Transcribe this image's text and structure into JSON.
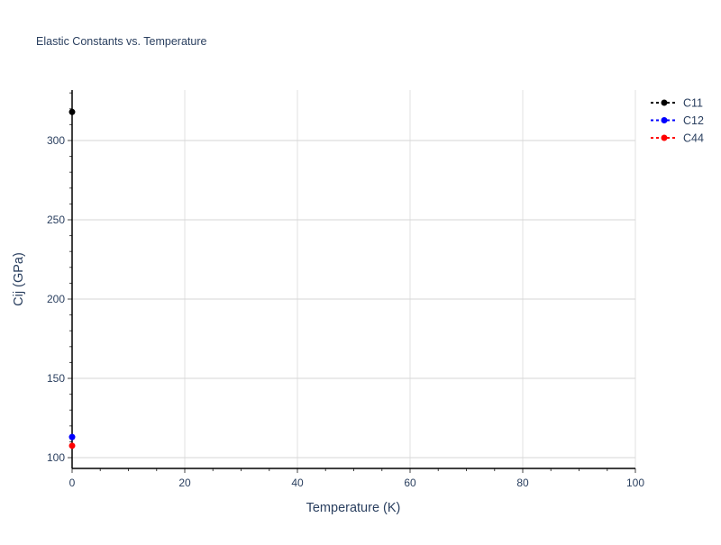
{
  "chart_data": {
    "type": "scatter",
    "mode": "lines+markers",
    "title": "Elastic Constants vs. Temperature",
    "xlabel": "Temperature (K)",
    "ylabel": "Cij (GPa)",
    "xlim": [
      0,
      100
    ],
    "ylim": [
      93.2,
      331.8
    ],
    "xticks": [
      0,
      20,
      40,
      60,
      80,
      100
    ],
    "yticks": [
      100,
      150,
      200,
      250,
      300
    ],
    "grid": true,
    "legend": "top-right",
    "series": [
      {
        "name": "C11",
        "color": "#000000",
        "x": [
          0
        ],
        "y": [
          318
        ]
      },
      {
        "name": "C12",
        "color": "#0000ff",
        "x": [
          0
        ],
        "y": [
          113
        ]
      },
      {
        "name": "C44",
        "color": "#ff0000",
        "x": [
          0
        ],
        "y": [
          107.5
        ]
      }
    ]
  }
}
